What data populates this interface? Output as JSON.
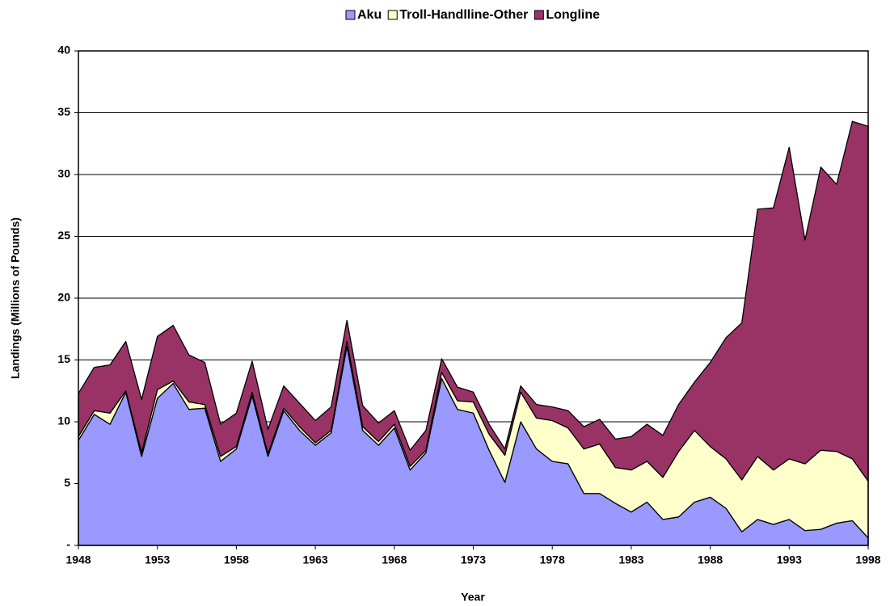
{
  "chart_data": {
    "type": "stacked_area",
    "x_label": "Year",
    "y_label": "Landings (Millions of Pounds)",
    "x": [
      1948,
      1949,
      1950,
      1951,
      1952,
      1953,
      1954,
      1955,
      1956,
      1957,
      1958,
      1959,
      1960,
      1961,
      1962,
      1963,
      1964,
      1965,
      1966,
      1967,
      1968,
      1969,
      1970,
      1971,
      1972,
      1973,
      1974,
      1975,
      1976,
      1977,
      1978,
      1979,
      1980,
      1981,
      1982,
      1983,
      1984,
      1985,
      1986,
      1987,
      1988,
      1989,
      1990,
      1991,
      1992,
      1993,
      1994,
      1995,
      1996,
      1997,
      1998
    ],
    "series": [
      {
        "name": "Aku",
        "color": "#9999ff",
        "values": [
          8.5,
          10.6,
          9.8,
          12.4,
          7.2,
          11.9,
          13.1,
          11.0,
          11.1,
          6.8,
          7.8,
          12.1,
          7.2,
          10.9,
          9.3,
          8.1,
          9.1,
          16.1,
          9.3,
          8.1,
          9.5,
          6.1,
          7.5,
          13.5,
          11.0,
          10.7,
          7.7,
          5.1,
          10.0,
          7.8,
          6.8,
          6.6,
          4.2,
          4.2,
          3.4,
          2.7,
          3.5,
          2.1,
          2.3,
          3.5,
          3.9,
          3.0,
          1.1,
          2.1,
          1.7,
          2.1,
          1.2,
          1.3,
          1.8,
          2.0,
          0.6
        ]
      },
      {
        "name": "Troll-Handlline-Other",
        "color": "#ffffcc",
        "values": [
          0.3,
          0.3,
          0.9,
          0.1,
          0.3,
          0.7,
          0.2,
          0.6,
          0.3,
          0.4,
          0.2,
          0.3,
          0.2,
          0.2,
          0.3,
          0.2,
          0.2,
          0.4,
          0.3,
          0.3,
          0.3,
          0.3,
          0.2,
          0.5,
          0.7,
          0.9,
          1.3,
          2.2,
          2.4,
          2.5,
          3.3,
          2.9,
          3.6,
          4.0,
          2.9,
          3.4,
          3.3,
          3.4,
          5.3,
          5.8,
          4.1,
          4.0,
          4.2,
          5.1,
          4.4,
          4.9,
          5.4,
          6.4,
          5.8,
          5.0,
          4.6
        ]
      },
      {
        "name": "Longline",
        "color": "#993366",
        "values": [
          3.5,
          3.5,
          3.9,
          4.0,
          4.3,
          4.3,
          4.5,
          3.8,
          3.4,
          2.6,
          2.7,
          2.5,
          2.0,
          1.8,
          1.9,
          1.8,
          1.9,
          1.7,
          1.7,
          1.5,
          1.1,
          1.3,
          1.6,
          1.1,
          1.1,
          0.8,
          0.8,
          0.5,
          0.5,
          1.1,
          1.1,
          1.4,
          1.8,
          2.0,
          2.3,
          2.7,
          3.0,
          3.4,
          3.8,
          3.9,
          6.8,
          9.8,
          12.7,
          20.0,
          21.2,
          25.2,
          18.1,
          22.9,
          21.6,
          27.3,
          28.7
        ]
      }
    ],
    "xlim": [
      1948,
      1998
    ],
    "xticks": [
      1948,
      1953,
      1958,
      1963,
      1968,
      1973,
      1978,
      1983,
      1988,
      1993,
      1998
    ],
    "ylim": [
      0,
      40
    ],
    "yticks": [
      {
        "value": 0,
        "label": "-"
      },
      5,
      10,
      15,
      20,
      25,
      30,
      35,
      40
    ],
    "grid": true,
    "legend": "top"
  }
}
